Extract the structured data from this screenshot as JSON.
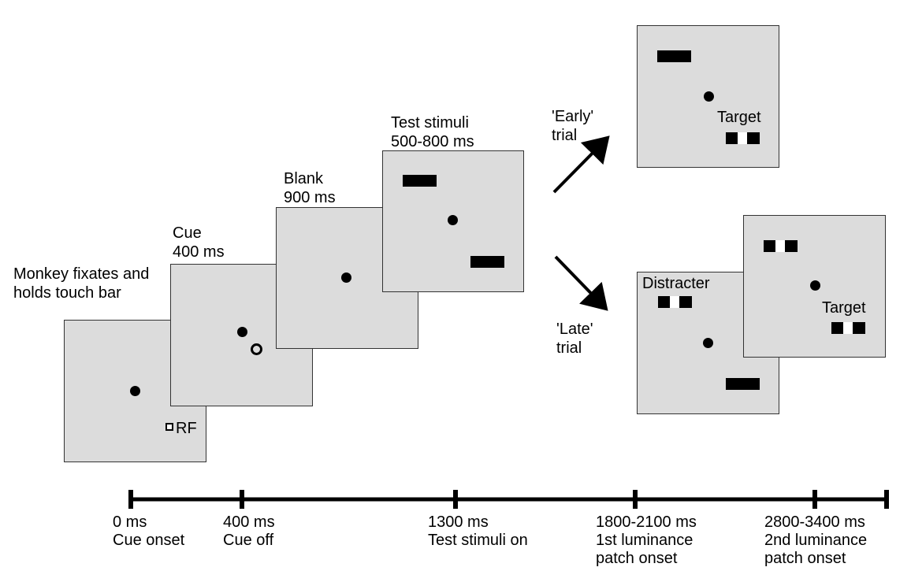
{
  "stages": {
    "fixate_label": [
      "Monkey fixates and",
      "holds touch bar"
    ],
    "rf_label": "RF",
    "cue_label": [
      "Cue",
      "400 ms"
    ],
    "blank_label": [
      "Blank",
      "900 ms"
    ],
    "test_label": [
      "Test stimuli",
      "500-800 ms"
    ]
  },
  "branches": {
    "early_label": [
      "'Early'",
      "trial"
    ],
    "late_label": [
      "'Late'",
      "trial"
    ],
    "target_label": "Target",
    "distracter_label": "Distracter"
  },
  "timeline": {
    "ticks": [
      {
        "time": "0 ms",
        "event": [
          "Cue onset"
        ]
      },
      {
        "time": "400 ms",
        "event": [
          "Cue off"
        ]
      },
      {
        "time": "1300 ms",
        "event": [
          "Test stimuli on"
        ]
      },
      {
        "time": "1800-2100 ms",
        "event": [
          "1st luminance",
          "patch onset"
        ]
      },
      {
        "time": "2800-3400 ms",
        "event": [
          "2nd luminance",
          "patch onset"
        ]
      }
    ]
  }
}
